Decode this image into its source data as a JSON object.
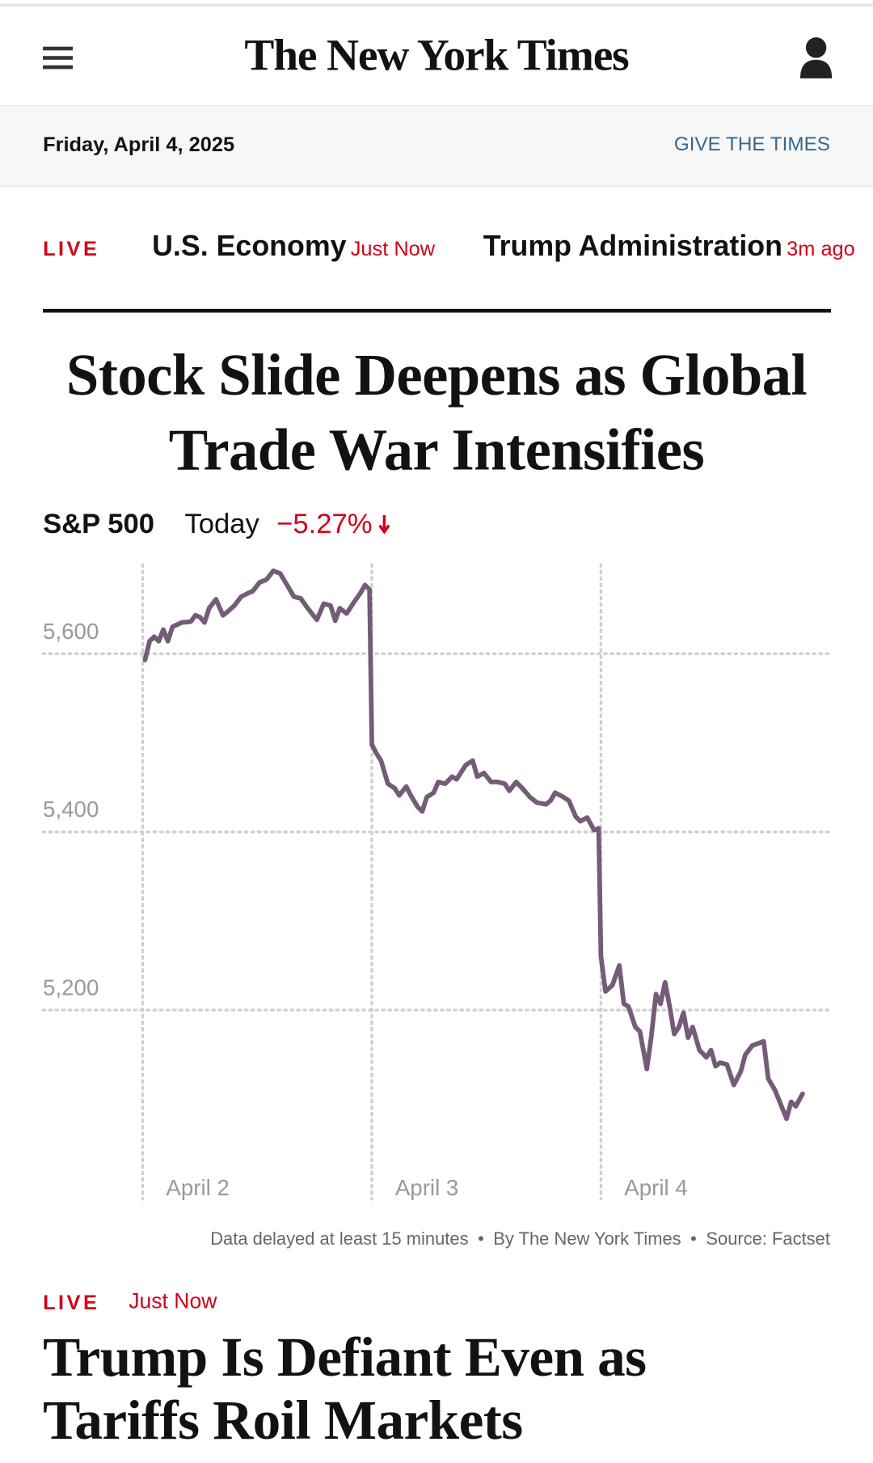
{
  "header": {
    "logo": "The New York Times",
    "date": "Friday, April 4, 2025",
    "give": "GIVE THE TIMES"
  },
  "live_bar": {
    "live": "LIVE",
    "items": [
      {
        "topic": "U.S. Economy",
        "time": "Just Now"
      },
      {
        "topic": "Trump Administration",
        "time": "3m ago"
      }
    ]
  },
  "headline": "Stock Slide Deepens as Global Trade War Intensifies",
  "chart_data": {
    "type": "line",
    "title": "S&P 500",
    "subtitle": "Today",
    "change": "−5.27%",
    "color": "#745b78",
    "grid": true,
    "xlim": [
      0,
      3
    ],
    "xticks": [
      {
        "value": 0,
        "label": "April 2"
      },
      {
        "value": 1,
        "label": "April 3"
      },
      {
        "value": 2,
        "label": "April 4"
      }
    ],
    "ylim": [
      5035,
      5700
    ],
    "yticks": [
      {
        "value": 5200,
        "label": "5,200"
      },
      {
        "value": 5400,
        "label": "5,400"
      },
      {
        "value": 5600,
        "label": "5,600"
      }
    ],
    "x": [
      0.01,
      0.03,
      0.05,
      0.07,
      0.09,
      0.11,
      0.13,
      0.17,
      0.21,
      0.23,
      0.25,
      0.27,
      0.29,
      0.32,
      0.35,
      0.37,
      0.4,
      0.43,
      0.46,
      0.48,
      0.51,
      0.54,
      0.57,
      0.6,
      0.63,
      0.66,
      0.69,
      0.72,
      0.76,
      0.79,
      0.82,
      0.84,
      0.86,
      0.89,
      0.92,
      0.95,
      0.97,
      0.99,
      1.0,
      1.02,
      1.04,
      1.07,
      1.1,
      1.12,
      1.15,
      1.17,
      1.2,
      1.22,
      1.24,
      1.27,
      1.29,
      1.32,
      1.35,
      1.37,
      1.41,
      1.44,
      1.46,
      1.49,
      1.52,
      1.55,
      1.58,
      1.6,
      1.63,
      1.66,
      1.69,
      1.72,
      1.76,
      1.78,
      1.8,
      1.83,
      1.86,
      1.89,
      1.91,
      1.94,
      1.97,
      1.99,
      2.0,
      2.02,
      2.05,
      2.08,
      2.1,
      2.12,
      2.15,
      2.17,
      2.2,
      2.22,
      2.24,
      2.26,
      2.28,
      2.3,
      2.32,
      2.34,
      2.36,
      2.38,
      2.4,
      2.43,
      2.46,
      2.48,
      2.5,
      2.52,
      2.55,
      2.58,
      2.61,
      2.63,
      2.66,
      2.68,
      2.71,
      2.73,
      2.76,
      2.78,
      2.81,
      2.83,
      2.85,
      2.88
    ],
    "values": [
      5593,
      5614,
      5619,
      5614,
      5627,
      5614,
      5630,
      5635,
      5636,
      5643,
      5641,
      5635,
      5651,
      5661,
      5643,
      5647,
      5654,
      5664,
      5668,
      5670,
      5680,
      5683,
      5693,
      5690,
      5677,
      5664,
      5662,
      5651,
      5638,
      5656,
      5654,
      5637,
      5651,
      5645,
      5657,
      5668,
      5677,
      5672,
      5498,
      5488,
      5480,
      5454,
      5449,
      5441,
      5451,
      5441,
      5428,
      5423,
      5439,
      5444,
      5456,
      5454,
      5462,
      5459,
      5475,
      5480,
      5462,
      5466,
      5456,
      5456,
      5454,
      5446,
      5456,
      5448,
      5439,
      5433,
      5431,
      5435,
      5444,
      5440,
      5435,
      5417,
      5412,
      5416,
      5402,
      5404,
      5260,
      5221,
      5228,
      5250,
      5207,
      5204,
      5181,
      5176,
      5134,
      5171,
      5218,
      5207,
      5231,
      5204,
      5173,
      5181,
      5197,
      5169,
      5181,
      5155,
      5147,
      5155,
      5137,
      5141,
      5139,
      5116,
      5131,
      5150,
      5160,
      5162,
      5165,
      5123,
      5110,
      5097,
      5078,
      5097,
      5092,
      5106
    ],
    "note": "Data delayed at least 15 minutes",
    "byline": "By The New York Times",
    "source": "Source: Factset"
  },
  "story": {
    "live": "LIVE",
    "time": "Just Now",
    "headline": "Trump Is Defiant Even as Tariffs Roil Markets"
  }
}
